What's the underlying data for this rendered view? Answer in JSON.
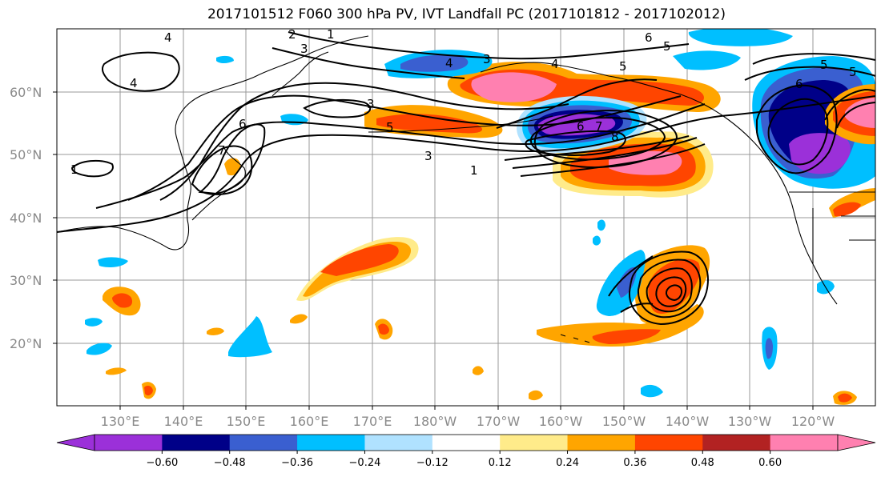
{
  "title": "2017101512 F060 300 hPa PV, IVT Landfall PC (2017101812 - 2017102012)",
  "map": {
    "lat_labels": [
      "60°N",
      "50°N",
      "40°N",
      "30°N",
      "20°N"
    ],
    "lon_labels": [
      "130°E",
      "140°E",
      "150°E",
      "160°E",
      "170°E",
      "180°W",
      "170°W",
      "160°W",
      "150°W",
      "140°W",
      "130°W",
      "120°W"
    ],
    "contour_labels": [
      "4",
      "3",
      "2",
      "1",
      "4",
      "3",
      "6",
      "5",
      "4",
      "5",
      "6",
      "5",
      "6",
      "7",
      "8",
      "3",
      "5",
      "4",
      "1",
      "1",
      "3",
      "6",
      "7",
      "5"
    ]
  },
  "colorbar": {
    "colors": [
      "#9b30d9",
      "#000088",
      "#3a5fd0",
      "#00bfff",
      "#b0e2ff",
      "#ffffff",
      "#ffeb8a",
      "#ffa500",
      "#ff4500",
      "#b22222",
      "#ff80b0"
    ],
    "tick_labels": [
      "−0.60",
      "−0.48",
      "−0.36",
      "−0.24",
      "−0.12",
      "0.12",
      "0.24",
      "0.36",
      "0.48",
      "0.60"
    ]
  }
}
